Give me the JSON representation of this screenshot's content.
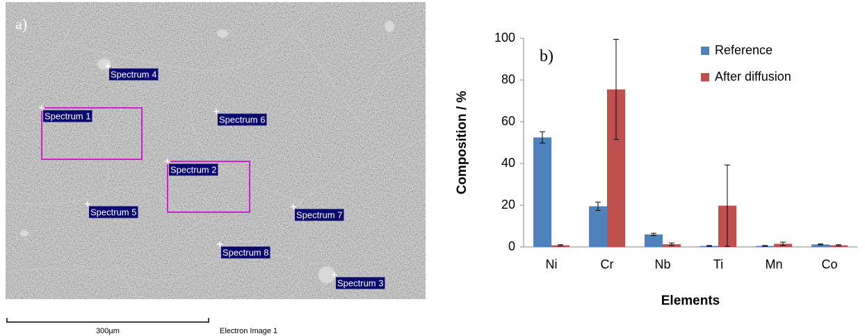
{
  "image_panel": {
    "label": "a)",
    "spectra": [
      "Spectrum 1",
      "Spectrum 2",
      "Spectrum 3",
      "Spectrum 4",
      "Spectrum 5",
      "Spectrum 6",
      "Spectrum 7",
      "Spectrum 8"
    ],
    "scale_bar": "300µm",
    "caption": "Electron Image 1"
  },
  "chart_data": {
    "type": "bar",
    "panel_label": "b)",
    "x_label": "Elements",
    "y_label": "Composition / %",
    "categories": [
      "Ni",
      "Cr",
      "Nb",
      "Ti",
      "Mn",
      "Co"
    ],
    "series": [
      {
        "name": "Reference",
        "color": "#4f81bd",
        "values": [
          52.5,
          19.5,
          6,
          0.5,
          0.5,
          1.2
        ],
        "errors": [
          2.7,
          2,
          0.6,
          0.2,
          0.2,
          0.2
        ]
      },
      {
        "name": "After diffusion",
        "color": "#c0504d",
        "values": [
          0.8,
          75.5,
          1.3,
          19.8,
          1.5,
          0.8
        ],
        "errors": [
          0.3,
          24,
          0.6,
          19.5,
          0.8,
          0.3
        ]
      }
    ],
    "ylim": [
      0,
      100
    ],
    "yticks": [
      0,
      20,
      40,
      60,
      80,
      100
    ],
    "grid": false,
    "legend": "top-right"
  }
}
